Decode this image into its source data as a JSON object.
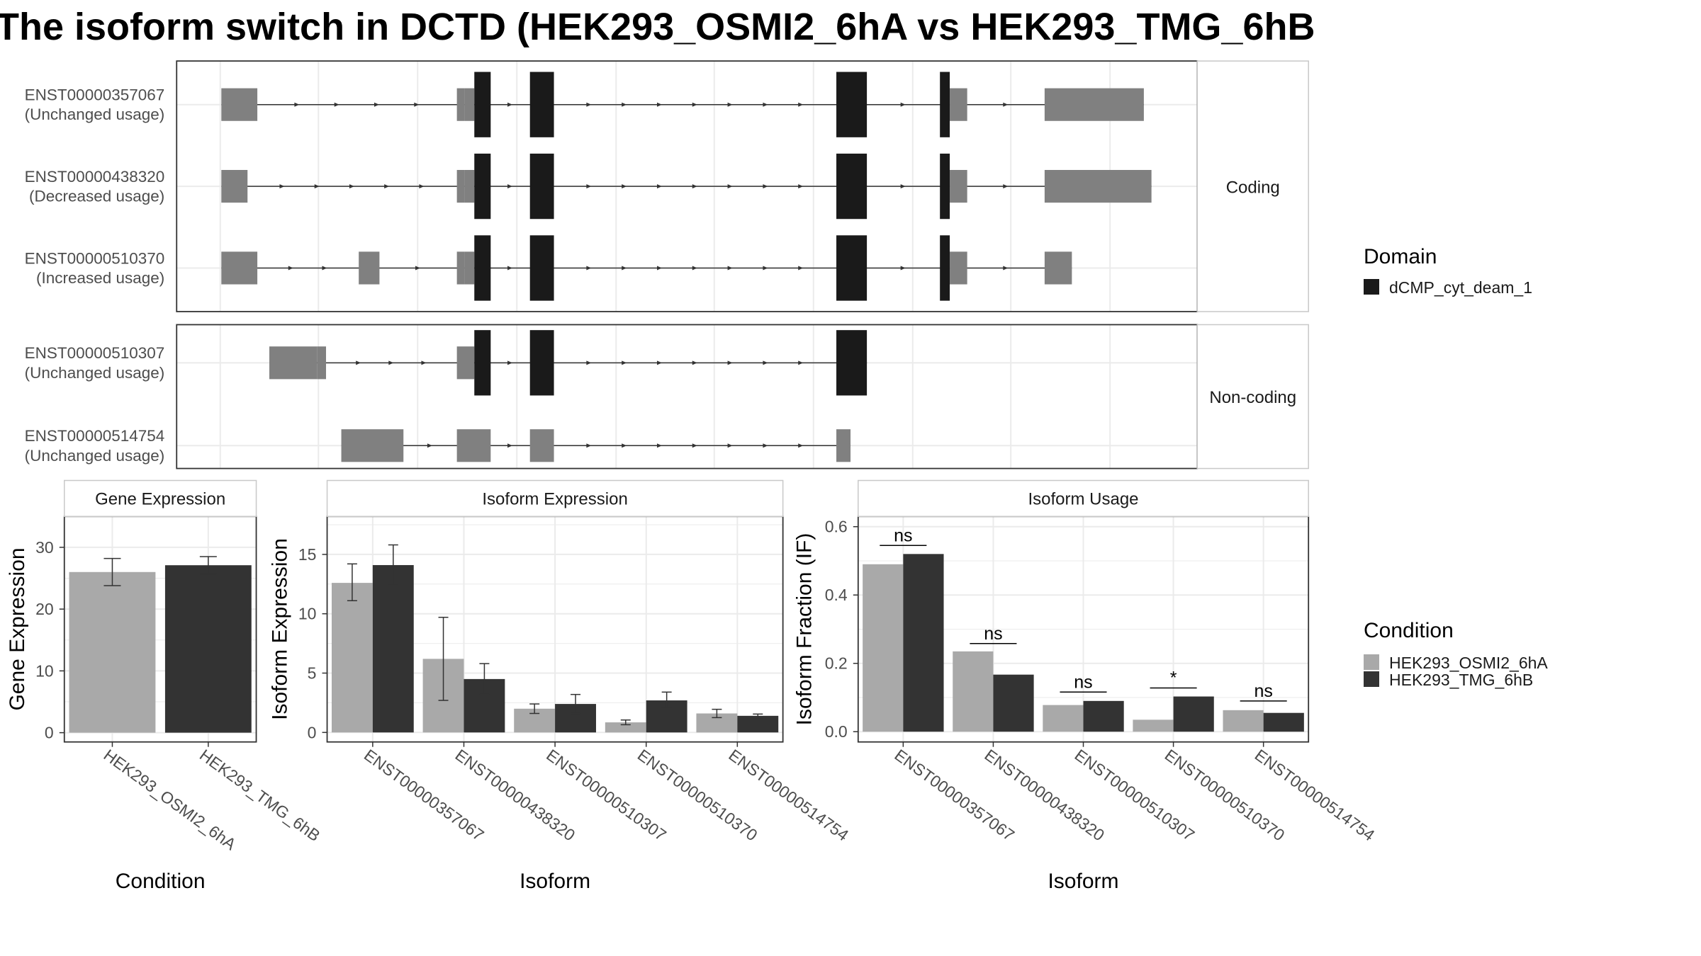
{
  "title": "The isoform switch in DCTD (HEK293_OSMI2_6hA vs HEK293_TMG_6hB",
  "colors": {
    "utr": "#808080",
    "domain": "#1a1a1a",
    "cond_a": "#a9a9a9",
    "cond_b": "#333333",
    "grid": "#ebebeb",
    "strip_bg": "#ffffff",
    "panel_border": "#333333"
  },
  "structure": {
    "groups": [
      {
        "label": "Coding",
        "transcripts": [
          {
            "id": "ENST00000357067",
            "usage": "(Unchanged usage)",
            "exons": [
              [
                203,
                236,
                "utr"
              ],
              [
                419,
                426,
                "utr"
              ],
              [
                426,
                435,
                "utr"
              ],
              [
                435,
                450,
                "domain"
              ],
              [
                486,
                508,
                "domain"
              ],
              [
                767,
                795,
                "domain"
              ],
              [
                862,
                871,
                "domain"
              ],
              [
                871,
                887,
                "utr"
              ],
              [
                958,
                974,
                "utr"
              ],
              [
                974,
                1049,
                "utr"
              ]
            ]
          },
          {
            "id": "ENST00000438320",
            "usage": "(Decreased usage)",
            "exons": [
              [
                203,
                227,
                "utr"
              ],
              [
                419,
                426,
                "utr"
              ],
              [
                426,
                435,
                "utr"
              ],
              [
                435,
                450,
                "domain"
              ],
              [
                486,
                508,
                "domain"
              ],
              [
                767,
                795,
                "domain"
              ],
              [
                862,
                871,
                "domain"
              ],
              [
                871,
                887,
                "utr"
              ],
              [
                958,
                974,
                "utr"
              ],
              [
                974,
                1056,
                "utr"
              ]
            ]
          },
          {
            "id": "ENST00000510370",
            "usage": "(Increased usage)",
            "exons": [
              [
                203,
                236,
                "utr"
              ],
              [
                329,
                348,
                "utr"
              ],
              [
                419,
                426,
                "utr"
              ],
              [
                426,
                435,
                "utr"
              ],
              [
                435,
                450,
                "domain"
              ],
              [
                486,
                508,
                "domain"
              ],
              [
                767,
                795,
                "domain"
              ],
              [
                862,
                871,
                "domain"
              ],
              [
                871,
                887,
                "utr"
              ],
              [
                958,
                974,
                "utr"
              ],
              [
                974,
                983,
                "utr"
              ]
            ]
          }
        ]
      },
      {
        "label": "Non-coding",
        "transcripts": [
          {
            "id": "ENST00000510307",
            "usage": "(Unchanged usage)",
            "exons": [
              [
                247,
                291,
                "utr"
              ],
              [
                291,
                299,
                "utr"
              ],
              [
                419,
                435,
                "utr"
              ],
              [
                435,
                450,
                "domain"
              ],
              [
                486,
                508,
                "domain"
              ],
              [
                767,
                795,
                "domain"
              ]
            ]
          },
          {
            "id": "ENST00000514754",
            "usage": "(Unchanged usage)",
            "exons": [
              [
                313,
                370,
                "utr"
              ],
              [
                419,
                450,
                "utr"
              ],
              [
                486,
                508,
                "utr"
              ],
              [
                767,
                780,
                "utr"
              ]
            ]
          }
        ]
      }
    ]
  },
  "legend_domain": {
    "title": "Domain",
    "items": [
      {
        "label": "dCMP_cyt_deam_1",
        "color": "#1a1a1a"
      }
    ]
  },
  "legend_condition": {
    "title": "Condition",
    "items": [
      {
        "label": "HEK293_OSMI2_6hA",
        "color": "#a9a9a9"
      },
      {
        "label": "HEK293_TMG_6hB",
        "color": "#333333"
      }
    ]
  },
  "chart_data": [
    {
      "type": "bar",
      "title": "Gene Expression",
      "xlabel": "Condition",
      "ylabel": "Gene Expression",
      "ylim": [
        -1.5,
        35
      ],
      "yticks": [
        0,
        10,
        20,
        30
      ],
      "categories": [
        "HEK293_OSMI2_6hA",
        "HEK293_TMG_6hB"
      ],
      "values": [
        26.0,
        27.1
      ],
      "errors": [
        [
          23.8,
          28.2
        ],
        [
          25.7,
          28.5
        ]
      ]
    },
    {
      "type": "bar",
      "title": "Isoform Expression",
      "xlabel": "Isoform",
      "ylabel": "Isoform Expression",
      "ylim": [
        -0.8,
        18.2
      ],
      "yticks": [
        0,
        5,
        10,
        15
      ],
      "categories": [
        "ENST00000357067",
        "ENST00000438320",
        "ENST00000510307",
        "ENST00000510370",
        "ENST00000514754"
      ],
      "series": [
        {
          "name": "HEK293_OSMI2_6hA",
          "values": [
            12.6,
            6.2,
            2.0,
            0.85,
            1.6
          ],
          "errors": [
            [
              11.1,
              14.2
            ],
            [
              2.7,
              9.7
            ],
            [
              1.6,
              2.4
            ],
            [
              0.65,
              1.05
            ],
            [
              1.25,
              1.95
            ]
          ]
        },
        {
          "name": "HEK293_TMG_6hB",
          "values": [
            14.1,
            4.5,
            2.4,
            2.7,
            1.4
          ],
          "errors": [
            [
              12.4,
              15.8
            ],
            [
              3.2,
              5.8
            ],
            [
              1.6,
              3.2
            ],
            [
              2.1,
              3.4
            ],
            [
              1.25,
              1.55
            ]
          ]
        }
      ]
    },
    {
      "type": "bar",
      "title": "Isoform Usage",
      "xlabel": "Isoform",
      "ylabel": "Isoform Fraction (IF)",
      "ylim": [
        -0.03,
        0.63
      ],
      "yticks": [
        "0.0",
        "0.2",
        "0.4",
        "0.6"
      ],
      "categories": [
        "ENST00000357067",
        "ENST00000438320",
        "ENST00000510307",
        "ENST00000510370",
        "ENST00000514754"
      ],
      "series": [
        {
          "name": "HEK293_OSMI2_6hA",
          "values": [
            0.49,
            0.235,
            0.078,
            0.035,
            0.063
          ]
        },
        {
          "name": "HEK293_TMG_6hB",
          "values": [
            0.52,
            0.167,
            0.09,
            0.103,
            0.055
          ]
        }
      ],
      "significance": [
        "ns",
        "ns",
        "ns",
        "*",
        "ns"
      ],
      "significance_y": [
        0.545,
        0.258,
        0.116,
        0.128,
        0.09
      ]
    }
  ]
}
